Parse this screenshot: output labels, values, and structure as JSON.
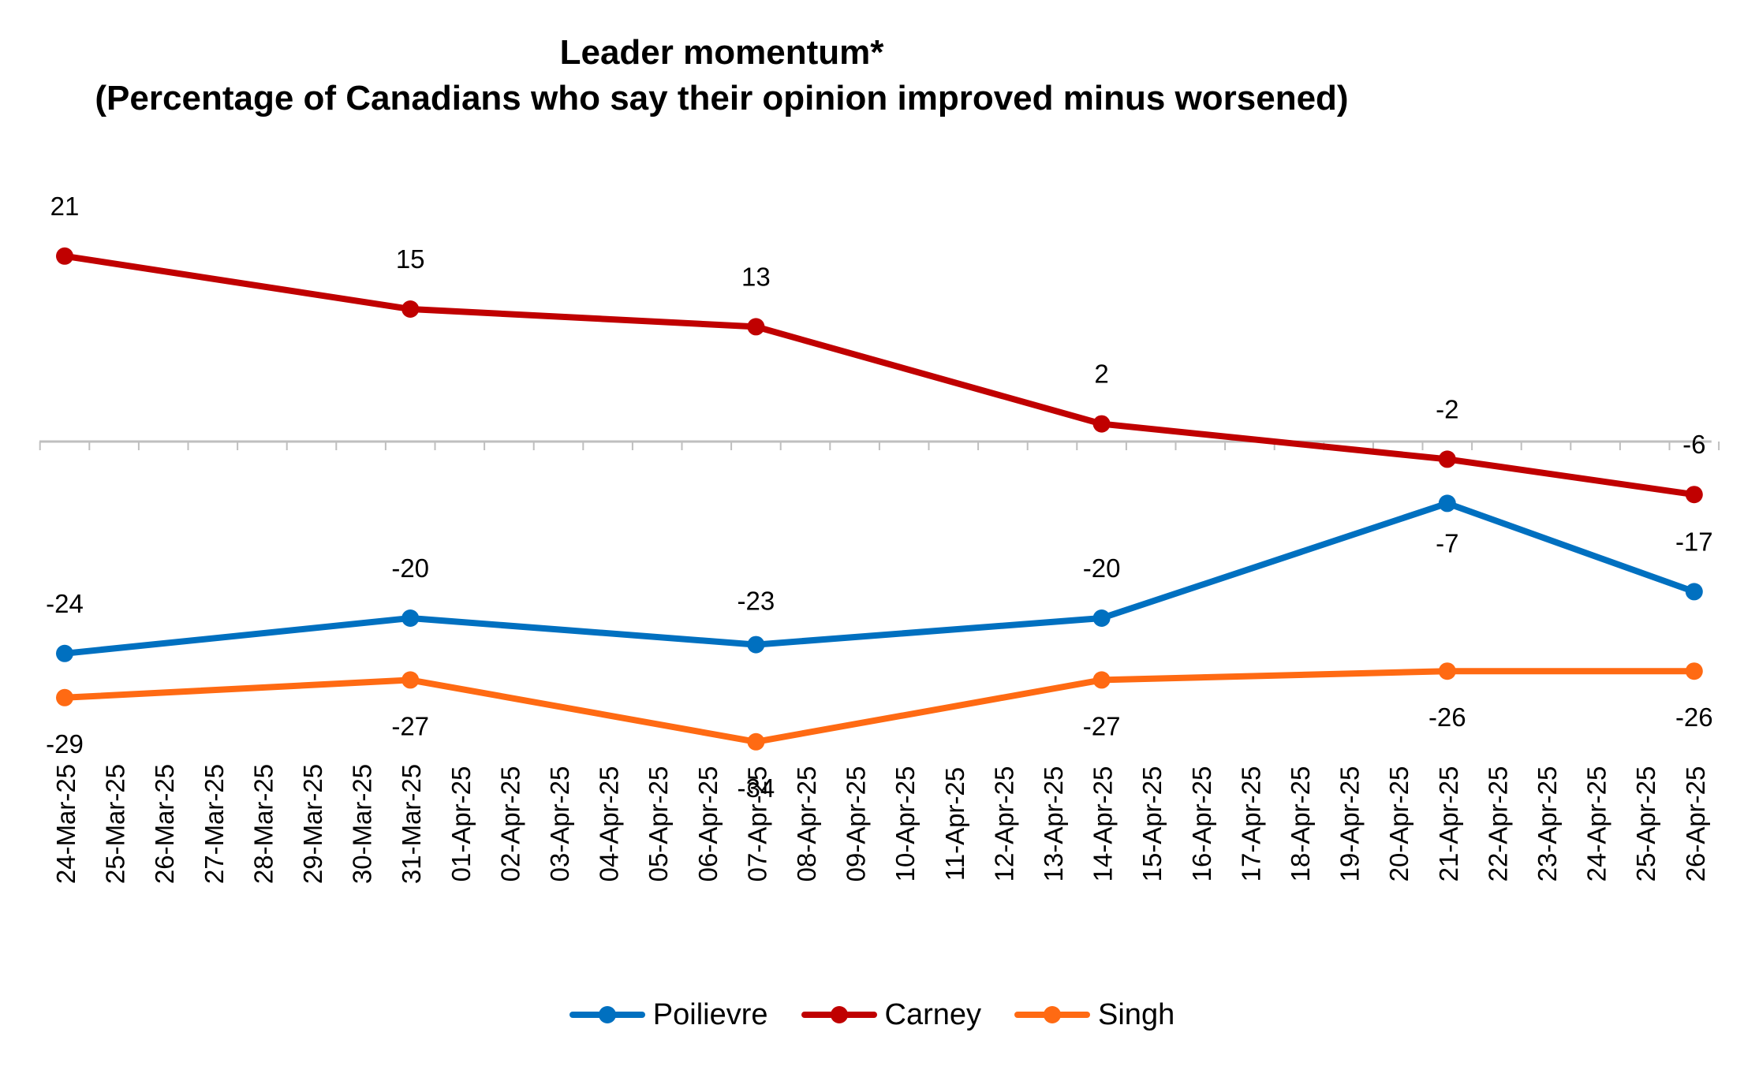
{
  "chart_data": {
    "type": "line",
    "title": "Leader momentum*",
    "subtitle": "(Percentage of Canadians who say their opinion improved minus worsened)",
    "xlabel": "",
    "ylabel": "",
    "categories": [
      "24-Mar-25",
      "25-Mar-25",
      "26-Mar-25",
      "27-Mar-25",
      "28-Mar-25",
      "29-Mar-25",
      "30-Mar-25",
      "31-Mar-25",
      "01-Apr-25",
      "02-Apr-25",
      "03-Apr-25",
      "04-Apr-25",
      "05-Apr-25",
      "06-Apr-25",
      "07-Apr-25",
      "08-Apr-25",
      "09-Apr-25",
      "10-Apr-25",
      "11-Apr-25",
      "12-Apr-25",
      "13-Apr-25",
      "14-Apr-25",
      "15-Apr-25",
      "16-Apr-25",
      "17-Apr-25",
      "18-Apr-25",
      "19-Apr-25",
      "20-Apr-25",
      "21-Apr-25",
      "22-Apr-25",
      "23-Apr-25",
      "24-Apr-25",
      "25-Apr-25",
      "26-Apr-25"
    ],
    "ylim": [
      -40,
      25
    ],
    "grid": false,
    "legend_position": "bottom",
    "series": [
      {
        "name": "Poilievre",
        "color": "#0070c0",
        "points": [
          {
            "x": "24-Mar-25",
            "y": -24
          },
          {
            "x": "31-Mar-25",
            "y": -20
          },
          {
            "x": "07-Apr-25",
            "y": -23
          },
          {
            "x": "14-Apr-25",
            "y": -20
          },
          {
            "x": "21-Apr-25",
            "y": -7
          },
          {
            "x": "26-Apr-25",
            "y": -17
          }
        ]
      },
      {
        "name": "Carney",
        "color": "#c00000",
        "points": [
          {
            "x": "24-Mar-25",
            "y": 21
          },
          {
            "x": "31-Mar-25",
            "y": 15
          },
          {
            "x": "07-Apr-25",
            "y": 13
          },
          {
            "x": "14-Apr-25",
            "y": 2
          },
          {
            "x": "21-Apr-25",
            "y": -2
          },
          {
            "x": "26-Apr-25",
            "y": -6
          }
        ]
      },
      {
        "name": "Singh",
        "color": "#ff6a13",
        "points": [
          {
            "x": "24-Mar-25",
            "y": -29
          },
          {
            "x": "31-Mar-25",
            "y": -27
          },
          {
            "x": "07-Apr-25",
            "y": -34
          },
          {
            "x": "14-Apr-25",
            "y": -27
          },
          {
            "x": "21-Apr-25",
            "y": -26
          },
          {
            "x": "26-Apr-25",
            "y": -26
          }
        ]
      }
    ]
  }
}
